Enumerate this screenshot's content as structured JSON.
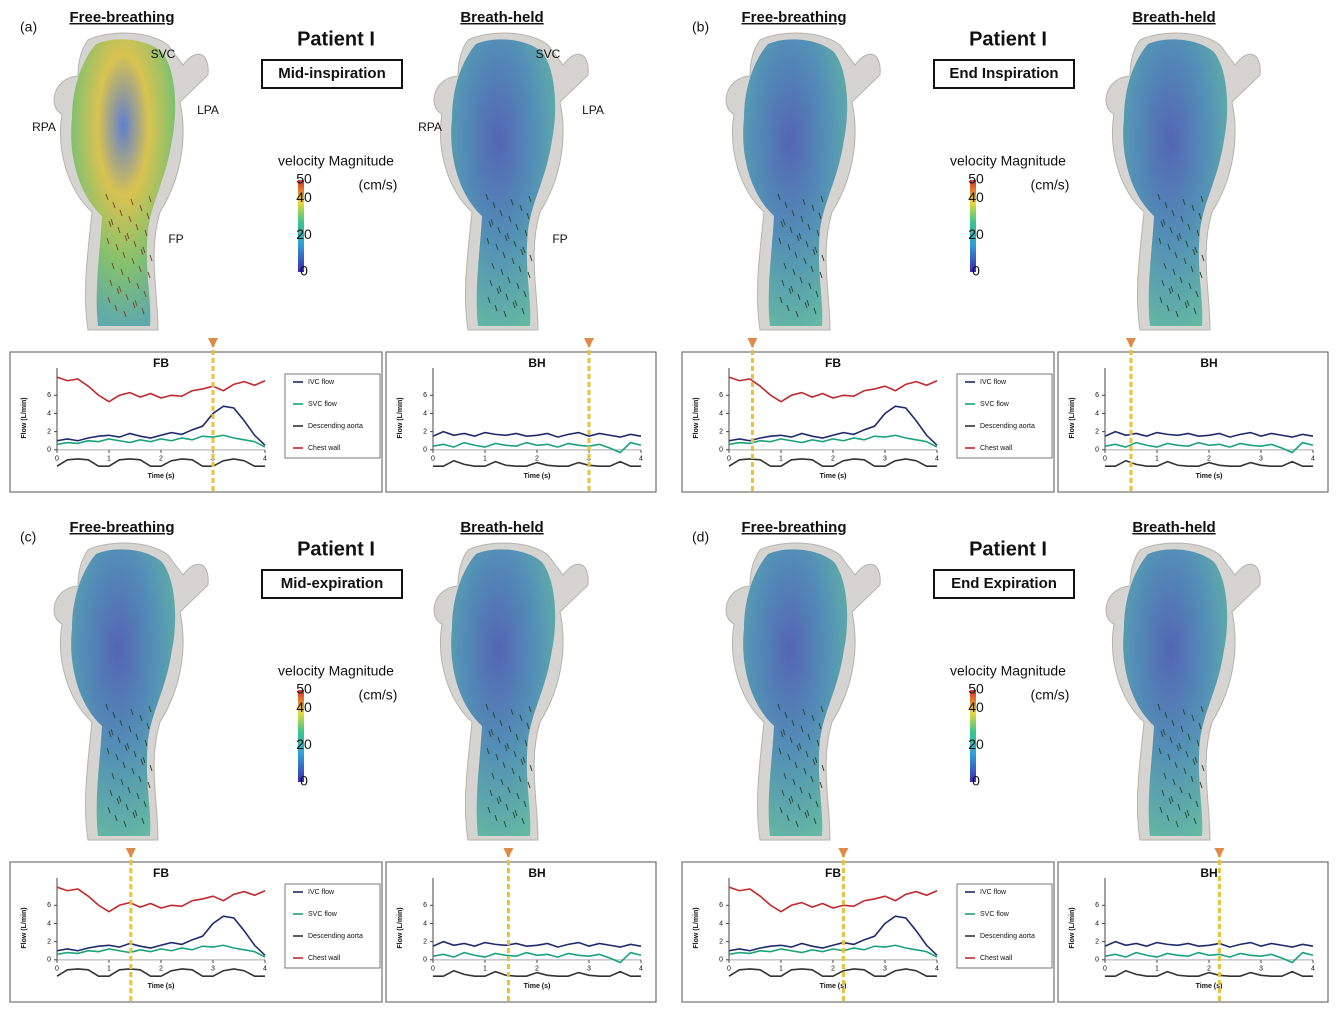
{
  "panels": [
    {
      "letter": "(a)",
      "left_label": "Free-breathing",
      "right_label": "Breath-held",
      "patient": "Patient I",
      "phase": "Mid-inspiration",
      "fb_marker_time": 3.0,
      "bh_marker_time": 3.0
    },
    {
      "letter": "(b)",
      "left_label": "Free-breathing",
      "right_label": "Breath-held",
      "patient": "Patient I",
      "phase": "End Inspiration",
      "fb_marker_time": 0.45,
      "bh_marker_time": 0.5
    },
    {
      "letter": "(c)",
      "left_label": "Free-breathing",
      "right_label": "Breath-held",
      "patient": "Patient I",
      "phase": "Mid-expiration",
      "fb_marker_time": 1.42,
      "bh_marker_time": 1.45
    },
    {
      "letter": "(d)",
      "left_label": "Free-breathing",
      "right_label": "Breath-held",
      "patient": "Patient I",
      "phase": "End Expiration",
      "fb_marker_time": 2.2,
      "bh_marker_time": 2.2
    }
  ],
  "anatomy_labels": [
    "SVC",
    "LPA",
    "RPA",
    "FP"
  ],
  "colorbar": {
    "title": "velocity Magnitude",
    "unit": "(cm/s)",
    "lim": [
      0,
      50
    ],
    "ticks": [
      50,
      40,
      20,
      0
    ]
  },
  "flow_charts": {
    "FB": {
      "type": "line",
      "title": "FB",
      "y_label": "Flow (L/min)",
      "x_label": "Time (s)",
      "xlim": [
        0,
        4
      ],
      "ylim": [
        -2,
        9
      ],
      "xticks": [
        0,
        1,
        2,
        3,
        4
      ],
      "yticks": [
        0,
        2,
        4,
        6
      ],
      "x": [
        0,
        0.2,
        0.4,
        0.6,
        0.8,
        1.0,
        1.2,
        1.4,
        1.6,
        1.8,
        2.0,
        2.2,
        2.4,
        2.6,
        2.8,
        3.0,
        3.2,
        3.4,
        3.6,
        3.8,
        4.0
      ],
      "series": [
        {
          "name": "IVC flow",
          "color": "#1f2a6b",
          "values": [
            1.0,
            1.2,
            1.0,
            1.3,
            1.5,
            1.6,
            1.4,
            1.8,
            1.5,
            1.3,
            1.6,
            1.9,
            1.7,
            2.2,
            2.6,
            4.0,
            4.8,
            4.6,
            3.2,
            1.6,
            0.5
          ]
        },
        {
          "name": "SVC flow",
          "color": "#1aa37a",
          "values": [
            0.6,
            0.8,
            0.7,
            1.0,
            0.9,
            1.2,
            1.0,
            0.8,
            1.1,
            0.9,
            1.2,
            1.0,
            1.3,
            1.1,
            1.5,
            1.4,
            1.6,
            1.3,
            1.1,
            0.9,
            0.3
          ]
        },
        {
          "name": "Descending aorta",
          "color": "#333333",
          "values": [
            -1.8,
            -1.1,
            -1.0,
            -1.1,
            -1.8,
            -1.8,
            -1.1,
            -1.0,
            -1.1,
            -1.8,
            -1.8,
            -1.2,
            -1.0,
            -1.1,
            -1.8,
            -1.8,
            -1.2,
            -1.0,
            -1.2,
            -1.8,
            -1.8
          ]
        },
        {
          "name": "Chest wall",
          "color": "#c0282d",
          "values": [
            8.0,
            7.6,
            7.8,
            7.0,
            6.0,
            5.3,
            6.0,
            6.3,
            5.8,
            6.2,
            5.7,
            6.0,
            5.9,
            6.5,
            6.7,
            7.0,
            6.5,
            7.2,
            7.5,
            7.1,
            7.6
          ]
        }
      ]
    },
    "BH": {
      "type": "line",
      "title": "BH",
      "y_label": "Flow (L/min)",
      "x_label": "Time (s)",
      "xlim": [
        0,
        4
      ],
      "ylim": [
        -2,
        9
      ],
      "xticks": [
        0,
        1,
        2,
        3,
        4
      ],
      "yticks": [
        0,
        2,
        4,
        6
      ],
      "x": [
        0,
        0.2,
        0.4,
        0.6,
        0.8,
        1.0,
        1.2,
        1.4,
        1.6,
        1.8,
        2.0,
        2.2,
        2.4,
        2.6,
        2.8,
        3.0,
        3.2,
        3.4,
        3.6,
        3.8,
        4.0
      ],
      "series": [
        {
          "name": "IVC flow",
          "color": "#1f2a6b",
          "values": [
            1.5,
            2.0,
            1.6,
            1.8,
            1.5,
            1.9,
            1.7,
            1.6,
            1.8,
            1.5,
            1.6,
            1.8,
            1.4,
            1.7,
            1.9,
            1.5,
            1.8,
            1.6,
            1.4,
            1.7,
            1.5
          ]
        },
        {
          "name": "SVC flow",
          "color": "#1aa37a",
          "values": [
            0.4,
            0.6,
            0.3,
            0.8,
            0.5,
            0.3,
            0.7,
            0.5,
            0.4,
            0.8,
            0.5,
            0.6,
            0.3,
            0.7,
            0.5,
            0.4,
            0.6,
            0.2,
            -0.3,
            0.8,
            0.5
          ]
        },
        {
          "name": "Descending aorta",
          "color": "#333333",
          "values": [
            -1.8,
            -1.8,
            -1.2,
            -1.6,
            -1.8,
            -1.8,
            -1.3,
            -1.7,
            -1.8,
            -1.8,
            -1.4,
            -1.7,
            -1.8,
            -1.8,
            -1.4,
            -1.7,
            -1.8,
            -1.8,
            -1.3,
            -1.8,
            -1.8
          ]
        }
      ]
    }
  }
}
